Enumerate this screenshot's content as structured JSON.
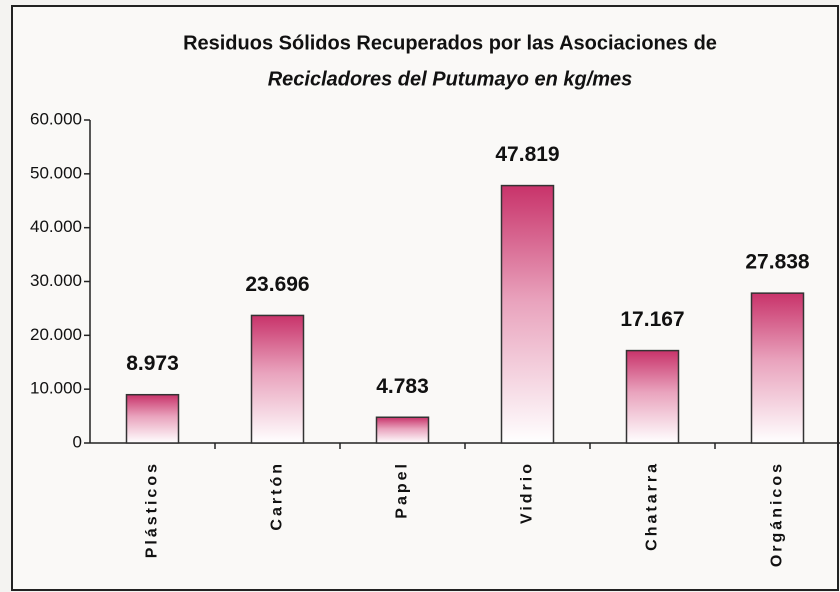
{
  "chart_data": {
    "type": "bar",
    "title": "Residuos Sólidos Recuperados por las Asociaciones de",
    "subtitle": "Recicladores del Putumayo en kg/mes",
    "categories": [
      "Plásticos",
      "Cartón",
      "Papel",
      "Vidrio",
      "Chatarra",
      "Orgánicos"
    ],
    "values": [
      8973,
      23696,
      4783,
      47819,
      17167,
      27838
    ],
    "value_labels": [
      "8.973",
      "23.696",
      "4.783",
      "47.819",
      "17.167",
      "27.838"
    ],
    "color": "#c8336a",
    "ylim": [
      0,
      60000
    ],
    "yticks": [
      0,
      {
        "value": 10000,
        "label": "10.000"
      },
      {
        "value": 20000,
        "label": "20.000"
      },
      {
        "value": 30000,
        "label": "30.000"
      },
      {
        "value": 40000,
        "label": "40.000"
      },
      {
        "value": 50000,
        "label": "50.000"
      },
      {
        "value": 60000,
        "label": "60.000"
      }
    ],
    "grid": false
  }
}
